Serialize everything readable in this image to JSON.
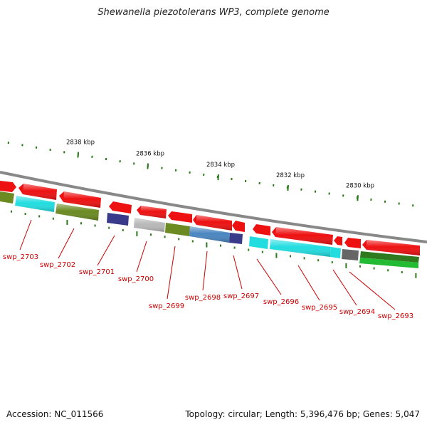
{
  "title": "Shewanella piezotolerans WP3, complete genome",
  "footer": {
    "accession": "Accession: NC_011566",
    "summary": "Topology: circular; Length: 5,396,476 bp; Genes: 5,047"
  },
  "ruler": [
    {
      "label": "2838 kbp",
      "pos": 2838
    },
    {
      "label": "2836 kbp",
      "pos": 2836
    },
    {
      "label": "2834 kbp",
      "pos": 2834
    },
    {
      "label": "2832 kbp",
      "pos": 2832
    },
    {
      "label": "2830 kbp",
      "pos": 2830
    }
  ],
  "colors": {
    "red": "#ee1111",
    "cyan": "#22dde0",
    "olive": "#6b8a22",
    "navy": "#3a3a8a",
    "silver": "#b8b8b8",
    "steel": "#4a86c0",
    "gray": "#666666",
    "green": "#22bb33",
    "backbone": "#888888",
    "tick": "#2a7a1a",
    "label": "#cc0000"
  },
  "labels": [
    {
      "text": "swp_2703"
    },
    {
      "text": "swp_2702"
    },
    {
      "text": "swp_2701"
    },
    {
      "text": "swp_2700"
    },
    {
      "text": "swp_2699"
    },
    {
      "text": "swp_2698"
    },
    {
      "text": "swp_2697"
    },
    {
      "text": "swp_2696"
    },
    {
      "text": "swp_2695"
    },
    {
      "text": "swp_2694"
    },
    {
      "text": "swp_2693"
    }
  ]
}
